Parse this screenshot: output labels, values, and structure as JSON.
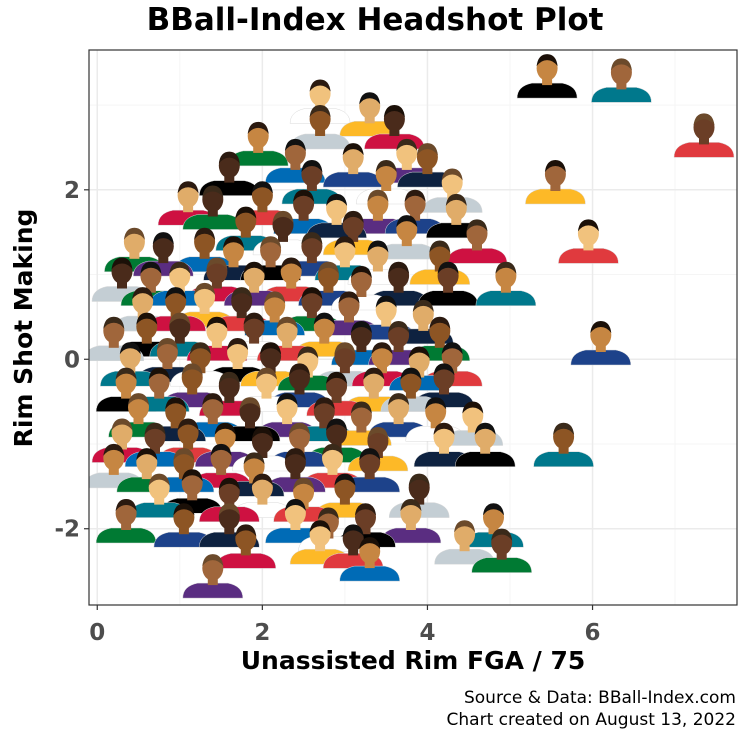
{
  "chart_data": {
    "type": "scatter",
    "title": "BBall-Index Headshot Plot",
    "xlabel": "Unassisted Rim FGA / 75",
    "ylabel": "Rim Shot Making",
    "xlim": [
      -0.1,
      7.75
    ],
    "ylim": [
      -2.9,
      3.65
    ],
    "x_ticks": [
      0,
      2,
      4,
      6
    ],
    "y_ticks": [
      -2,
      0,
      2
    ],
    "grid": true,
    "marker": "player-headshot",
    "points": [
      {
        "x": 5.45,
        "y": 3.2
      },
      {
        "x": 6.35,
        "y": 3.15
      },
      {
        "x": 7.35,
        "y": 2.5
      },
      {
        "x": 2.7,
        "y": 2.9
      },
      {
        "x": 3.3,
        "y": 2.75
      },
      {
        "x": 2.7,
        "y": 2.6
      },
      {
        "x": 3.6,
        "y": 2.6
      },
      {
        "x": 1.95,
        "y": 2.4
      },
      {
        "x": 2.4,
        "y": 2.2
      },
      {
        "x": 3.1,
        "y": 2.15
      },
      {
        "x": 3.75,
        "y": 2.2
      },
      {
        "x": 4.0,
        "y": 2.15
      },
      {
        "x": 1.6,
        "y": 2.05
      },
      {
        "x": 2.6,
        "y": 1.95
      },
      {
        "x": 3.5,
        "y": 1.95
      },
      {
        "x": 4.3,
        "y": 1.85
      },
      {
        "x": 5.55,
        "y": 1.95
      },
      {
        "x": 1.1,
        "y": 1.7
      },
      {
        "x": 1.4,
        "y": 1.65
      },
      {
        "x": 2.0,
        "y": 1.7
      },
      {
        "x": 2.5,
        "y": 1.6
      },
      {
        "x": 2.9,
        "y": 1.55
      },
      {
        "x": 3.4,
        "y": 1.6
      },
      {
        "x": 3.85,
        "y": 1.6
      },
      {
        "x": 4.35,
        "y": 1.55
      },
      {
        "x": 1.8,
        "y": 1.4
      },
      {
        "x": 2.25,
        "y": 1.35
      },
      {
        "x": 3.1,
        "y": 1.35
      },
      {
        "x": 3.75,
        "y": 1.3
      },
      {
        "x": 4.6,
        "y": 1.25
      },
      {
        "x": 5.95,
        "y": 1.25
      },
      {
        "x": 0.45,
        "y": 1.15
      },
      {
        "x": 0.8,
        "y": 1.1
      },
      {
        "x": 1.3,
        "y": 1.15
      },
      {
        "x": 1.65,
        "y": 1.05
      },
      {
        "x": 2.1,
        "y": 1.05
      },
      {
        "x": 2.6,
        "y": 1.1
      },
      {
        "x": 3.0,
        "y": 1.05
      },
      {
        "x": 3.4,
        "y": 1.0
      },
      {
        "x": 4.15,
        "y": 1.0
      },
      {
        "x": 0.3,
        "y": 0.8
      },
      {
        "x": 0.65,
        "y": 0.75
      },
      {
        "x": 1.0,
        "y": 0.75
      },
      {
        "x": 1.45,
        "y": 0.8
      },
      {
        "x": 1.9,
        "y": 0.75
      },
      {
        "x": 2.35,
        "y": 0.8
      },
      {
        "x": 2.8,
        "y": 0.75
      },
      {
        "x": 3.2,
        "y": 0.7
      },
      {
        "x": 3.65,
        "y": 0.75
      },
      {
        "x": 4.25,
        "y": 0.75
      },
      {
        "x": 4.95,
        "y": 0.75
      },
      {
        "x": 0.55,
        "y": 0.45
      },
      {
        "x": 0.95,
        "y": 0.45
      },
      {
        "x": 1.3,
        "y": 0.5
      },
      {
        "x": 1.75,
        "y": 0.45
      },
      {
        "x": 2.15,
        "y": 0.4
      },
      {
        "x": 2.6,
        "y": 0.45
      },
      {
        "x": 3.05,
        "y": 0.4
      },
      {
        "x": 3.5,
        "y": 0.35
      },
      {
        "x": 3.95,
        "y": 0.3
      },
      {
        "x": 0.2,
        "y": 0.1
      },
      {
        "x": 0.6,
        "y": 0.15
      },
      {
        "x": 1.0,
        "y": 0.15
      },
      {
        "x": 1.45,
        "y": 0.1
      },
      {
        "x": 1.9,
        "y": 0.15
      },
      {
        "x": 2.3,
        "y": 0.1
      },
      {
        "x": 2.75,
        "y": 0.15
      },
      {
        "x": 3.2,
        "y": 0.05
      },
      {
        "x": 3.65,
        "y": 0.05
      },
      {
        "x": 4.15,
        "y": 0.1
      },
      {
        "x": 6.1,
        "y": 0.05
      },
      {
        "x": 0.4,
        "y": -0.2
      },
      {
        "x": 0.85,
        "y": -0.15
      },
      {
        "x": 1.25,
        "y": -0.2
      },
      {
        "x": 1.7,
        "y": -0.15
      },
      {
        "x": 2.1,
        "y": -0.2
      },
      {
        "x": 2.55,
        "y": -0.25
      },
      {
        "x": 3.0,
        "y": -0.2
      },
      {
        "x": 3.45,
        "y": -0.2
      },
      {
        "x": 3.9,
        "y": -0.25
      },
      {
        "x": 4.3,
        "y": -0.2
      },
      {
        "x": 0.35,
        "y": -0.5
      },
      {
        "x": 0.75,
        "y": -0.5
      },
      {
        "x": 1.15,
        "y": -0.45
      },
      {
        "x": 1.6,
        "y": -0.55
      },
      {
        "x": 2.05,
        "y": -0.5
      },
      {
        "x": 2.45,
        "y": -0.45
      },
      {
        "x": 2.9,
        "y": -0.55
      },
      {
        "x": 3.35,
        "y": -0.5
      },
      {
        "x": 3.8,
        "y": -0.5
      },
      {
        "x": 4.2,
        "y": -0.45
      },
      {
        "x": 0.5,
        "y": -0.8
      },
      {
        "x": 0.95,
        "y": -0.85
      },
      {
        "x": 1.4,
        "y": -0.8
      },
      {
        "x": 1.85,
        "y": -0.85
      },
      {
        "x": 2.3,
        "y": -0.8
      },
      {
        "x": 2.75,
        "y": -0.85
      },
      {
        "x": 3.2,
        "y": -0.9
      },
      {
        "x": 3.65,
        "y": -0.8
      },
      {
        "x": 4.1,
        "y": -0.85
      },
      {
        "x": 4.55,
        "y": -0.9
      },
      {
        "x": 0.3,
        "y": -1.1
      },
      {
        "x": 0.7,
        "y": -1.15
      },
      {
        "x": 1.1,
        "y": -1.1
      },
      {
        "x": 1.55,
        "y": -1.15
      },
      {
        "x": 2.0,
        "y": -1.2
      },
      {
        "x": 2.45,
        "y": -1.15
      },
      {
        "x": 2.9,
        "y": -1.1
      },
      {
        "x": 3.4,
        "y": -1.2
      },
      {
        "x": 4.2,
        "y": -1.15
      },
      {
        "x": 4.7,
        "y": -1.15
      },
      {
        "x": 5.65,
        "y": -1.15
      },
      {
        "x": 0.2,
        "y": -1.4
      },
      {
        "x": 0.6,
        "y": -1.45
      },
      {
        "x": 1.05,
        "y": -1.45
      },
      {
        "x": 1.5,
        "y": -1.4
      },
      {
        "x": 1.9,
        "y": -1.5
      },
      {
        "x": 2.4,
        "y": -1.45
      },
      {
        "x": 2.85,
        "y": -1.4
      },
      {
        "x": 3.3,
        "y": -1.45
      },
      {
        "x": 0.75,
        "y": -1.75
      },
      {
        "x": 1.15,
        "y": -1.7
      },
      {
        "x": 1.6,
        "y": -1.8
      },
      {
        "x": 2.0,
        "y": -1.75
      },
      {
        "x": 2.5,
        "y": -1.8
      },
      {
        "x": 3.0,
        "y": -1.75
      },
      {
        "x": 3.9,
        "y": -1.75
      },
      {
        "x": 0.35,
        "y": -2.05
      },
      {
        "x": 1.05,
        "y": -2.1
      },
      {
        "x": 1.6,
        "y": -2.1
      },
      {
        "x": 2.4,
        "y": -2.05
      },
      {
        "x": 2.8,
        "y": -2.15
      },
      {
        "x": 3.25,
        "y": -2.1
      },
      {
        "x": 3.8,
        "y": -2.05
      },
      {
        "x": 4.8,
        "y": -2.1
      },
      {
        "x": 1.8,
        "y": -2.35
      },
      {
        "x": 2.7,
        "y": -2.3
      },
      {
        "x": 3.1,
        "y": -2.35
      },
      {
        "x": 3.3,
        "y": -2.5
      },
      {
        "x": 4.9,
        "y": -2.4
      },
      {
        "x": 4.45,
        "y": -2.3
      },
      {
        "x": 1.4,
        "y": -2.7
      }
    ]
  },
  "caption": {
    "source": "Source & Data: BBall-Index.com",
    "created": "Chart created on August 13, 2022"
  },
  "colors": {
    "panel_border": "#333333",
    "grid_major": "#ebebeb",
    "grid_minor": "#f5f5f5",
    "tick_label": "#4d4d4d",
    "jersey": [
      "#fdb927",
      "#1d428a",
      "#ce1141",
      "#000000",
      "#007a33",
      "#ffffff",
      "#5a2d81",
      "#c4ced4",
      "#0e2240",
      "#e03a3e",
      "#00788c",
      "#006bb6"
    ],
    "skin": [
      "#8d5524",
      "#c68642",
      "#e0ac69",
      "#6b3e26",
      "#f1c27d",
      "#4a2b1b",
      "#a0663b"
    ],
    "hair": [
      "#1b1008",
      "#2b1a10",
      "#3a2a1a",
      "#6b4a2b",
      "#111111"
    ]
  }
}
